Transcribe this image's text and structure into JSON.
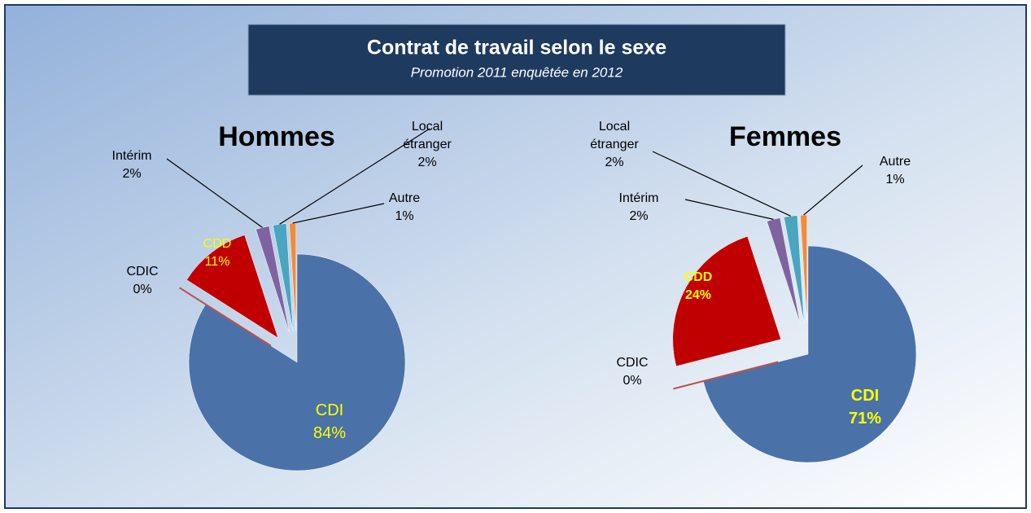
{
  "header": {
    "title": "Contrat de travail selon le sexe",
    "subtitle": "Promotion 2011 enquêtée en 2012"
  },
  "chart_data": [
    {
      "type": "pie",
      "title": "Hommes",
      "categories": [
        "CDI",
        "CDIC",
        "CDD",
        "Intérim",
        "Local étranger",
        "Autre"
      ],
      "values": [
        84,
        0,
        11,
        2,
        2,
        1
      ],
      "value_labels": [
        "84%",
        "0%",
        "11%",
        "2%",
        "2%",
        "1%"
      ],
      "colors": [
        "#4a72a8",
        "#c0504d",
        "#c00000",
        "#7f63a1",
        "#4aa5c0",
        "#f08c3c"
      ]
    },
    {
      "type": "pie",
      "title": "Femmes",
      "categories": [
        "CDI",
        "CDIC",
        "CDD",
        "Intérim",
        "Local étranger",
        "Autre"
      ],
      "values": [
        71,
        0,
        24,
        2,
        2,
        1
      ],
      "value_labels": [
        "71%",
        "0%",
        "24%",
        "2%",
        "2%",
        "1%"
      ],
      "colors": [
        "#4a72a8",
        "#c0504d",
        "#c00000",
        "#7f63a1",
        "#4aa5c0",
        "#f08c3c"
      ]
    }
  ]
}
